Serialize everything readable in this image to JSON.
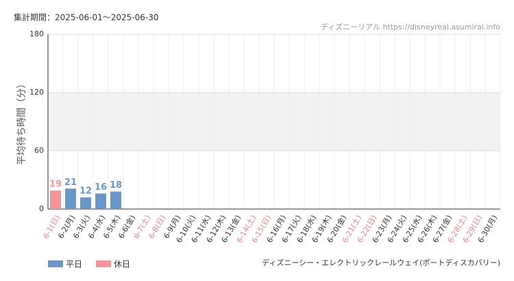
{
  "chart_data": {
    "type": "bar",
    "period": "集計期間：2025-06-01～2025-06-30",
    "source": "ディズニーリアル https://disneyreal.asumirai.info",
    "y_label": "平均待ち時間（分）",
    "caption": "ディズニーシー・エレクトリックレールウェイ(ポートディスカバリー)",
    "categories": [
      "6-1(日)",
      "6-2(月)",
      "6-3(火)",
      "6-4(水)",
      "6-5(木)",
      "6-6(金)",
      "6-7(土)",
      "6-8(日)",
      "6-9(月)",
      "6-10(火)",
      "6-11(水)",
      "6-12(木)",
      "6-13(金)",
      "6-14(土)",
      "6-15(日)",
      "6-16(月)",
      "6-17(火)",
      "6-18(水)",
      "6-19(木)",
      "6-20(金)",
      "6-21(土)",
      "6-22(日)",
      "6-23(月)",
      "6-24(火)",
      "6-25(水)",
      "6-26(木)",
      "6-27(金)",
      "6-28(土)",
      "6-29(日)",
      "6-30(月)"
    ],
    "category_label_colors": [
      "#f08080",
      "#333333",
      "#333333",
      "#333333",
      "#333333",
      "#333333",
      "#f08080",
      "#f08080",
      "#333333",
      "#333333",
      "#333333",
      "#333333",
      "#333333",
      "#f08080",
      "#f08080",
      "#333333",
      "#333333",
      "#333333",
      "#333333",
      "#333333",
      "#f08080",
      "#f08080",
      "#333333",
      "#333333",
      "#333333",
      "#333333",
      "#333333",
      "#f08080",
      "#f08080",
      "#333333"
    ],
    "series": [
      {
        "name": "平日",
        "color": "#6a96c8",
        "values": [
          null,
          21,
          12,
          16,
          18,
          null,
          null,
          null,
          null,
          null,
          null,
          null,
          null,
          null,
          null,
          null,
          null,
          null,
          null,
          null,
          null,
          null,
          null,
          null,
          null,
          null,
          null,
          null,
          null,
          null
        ]
      },
      {
        "name": "休日",
        "color": "#f4959a",
        "values": [
          19,
          null,
          null,
          null,
          null,
          null,
          null,
          null,
          null,
          null,
          null,
          null,
          null,
          null,
          null,
          null,
          null,
          null,
          null,
          null,
          null,
          null,
          null,
          null,
          null,
          null,
          null,
          null,
          null,
          null
        ]
      }
    ],
    "ylim": [
      0,
      180
    ],
    "yticks": [
      0,
      60,
      120,
      180
    ],
    "shaded_band": [
      60,
      120
    ],
    "grid": true
  }
}
